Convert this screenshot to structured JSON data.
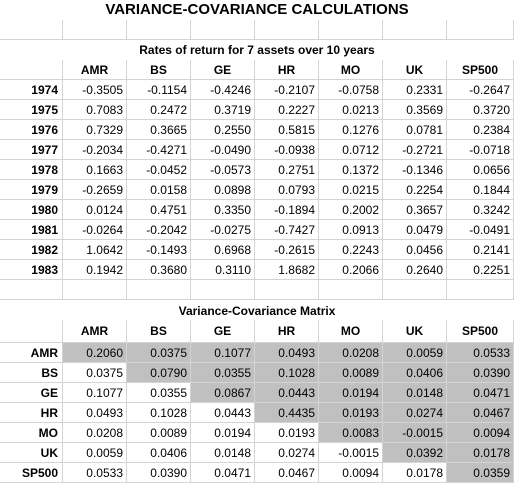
{
  "title": "VARIANCE-COVARIANCE CALCULATIONS",
  "returns_heading": "Rates of return for 7 assets over 10 years",
  "assets": [
    "AMR",
    "BS",
    "GE",
    "HR",
    "MO",
    "UK",
    "SP500"
  ],
  "returns": [
    {
      "year": "1974",
      "values": [
        "-0.3505",
        "-0.1154",
        "-0.4246",
        "-0.2107",
        "-0.0758",
        "0.2331",
        "-0.2647"
      ]
    },
    {
      "year": "1975",
      "values": [
        "0.7083",
        "0.2472",
        "0.3719",
        "0.2227",
        "0.0213",
        "0.3569",
        "0.3720"
      ]
    },
    {
      "year": "1976",
      "values": [
        "0.7329",
        "0.3665",
        "0.2550",
        "0.5815",
        "0.1276",
        "0.0781",
        "0.2384"
      ]
    },
    {
      "year": "1977",
      "values": [
        "-0.2034",
        "-0.4271",
        "-0.0490",
        "-0.0938",
        "0.0712",
        "-0.2721",
        "-0.0718"
      ]
    },
    {
      "year": "1978",
      "values": [
        "0.1663",
        "-0.0452",
        "-0.0573",
        "0.2751",
        "0.1372",
        "-0.1346",
        "0.0656"
      ]
    },
    {
      "year": "1979",
      "values": [
        "-0.2659",
        "0.0158",
        "0.0898",
        "0.0793",
        "0.0215",
        "0.2254",
        "0.1844"
      ]
    },
    {
      "year": "1980",
      "values": [
        "0.0124",
        "0.4751",
        "0.3350",
        "-0.1894",
        "0.2002",
        "0.3657",
        "0.3242"
      ]
    },
    {
      "year": "1981",
      "values": [
        "-0.0264",
        "-0.2042",
        "-0.0275",
        "-0.7427",
        "0.0913",
        "0.0479",
        "-0.0491"
      ]
    },
    {
      "year": "1982",
      "values": [
        "1.0642",
        "-0.1493",
        "0.6968",
        "-0.2615",
        "0.2243",
        "0.0456",
        "0.2141"
      ]
    },
    {
      "year": "1983",
      "values": [
        "0.1942",
        "0.3680",
        "0.3110",
        "1.8682",
        "0.2066",
        "0.2640",
        "0.2251"
      ]
    }
  ],
  "matrix_heading": "Variance-Covariance Matrix",
  "matrix": [
    {
      "asset": "AMR",
      "values": [
        "0.2060",
        "0.0375",
        "0.1077",
        "0.0493",
        "0.0208",
        "0.0059",
        "0.0533"
      ]
    },
    {
      "asset": "BS",
      "values": [
        "0.0375",
        "0.0790",
        "0.0355",
        "0.1028",
        "0.0089",
        "0.0406",
        "0.0390"
      ]
    },
    {
      "asset": "GE",
      "values": [
        "0.1077",
        "0.0355",
        "0.0867",
        "0.0443",
        "0.0194",
        "0.0148",
        "0.0471"
      ]
    },
    {
      "asset": "HR",
      "values": [
        "0.0493",
        "0.1028",
        "0.0443",
        "0.4435",
        "0.0193",
        "0.0274",
        "0.0467"
      ]
    },
    {
      "asset": "MO",
      "values": [
        "0.0208",
        "0.0089",
        "0.0194",
        "0.0193",
        "0.0083",
        "-0.0015",
        "0.0094"
      ]
    },
    {
      "asset": "UK",
      "values": [
        "0.0059",
        "0.0406",
        "0.0148",
        "0.0274",
        "-0.0015",
        "0.0392",
        "0.0178"
      ]
    },
    {
      "asset": "SP500",
      "values": [
        "0.0533",
        "0.0390",
        "0.0471",
        "0.0467",
        "0.0094",
        "0.0178",
        "0.0359"
      ]
    }
  ],
  "colors": {
    "shade": "#c0c0c0",
    "grid": "#d4d4d4"
  }
}
